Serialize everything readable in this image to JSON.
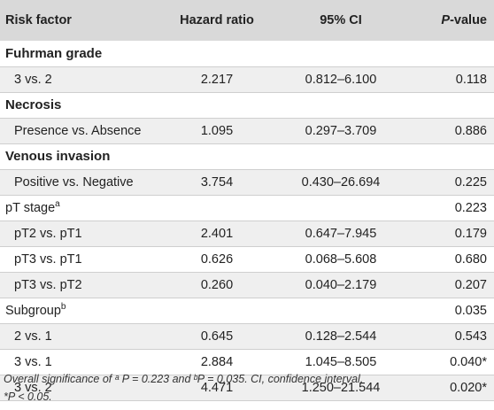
{
  "header": {
    "risk_factor": "Risk factor",
    "hazard_ratio": "Hazard ratio",
    "ci": "95% CI",
    "pvalue_p": "P",
    "pvalue_rest": "-value"
  },
  "rows": [
    {
      "label": "Fuhrman grade",
      "type": "bold",
      "sup": "",
      "hr": "",
      "ci": "",
      "p": ""
    },
    {
      "label": "3 vs. 2",
      "type": "sub",
      "sup": "",
      "hr": "2.217",
      "ci": "0.812–6.100",
      "p": "0.118"
    },
    {
      "label": "Necrosis",
      "type": "bold",
      "sup": "",
      "hr": "",
      "ci": "",
      "p": ""
    },
    {
      "label": "Presence vs. Absence",
      "type": "sub",
      "sup": "",
      "hr": "1.095",
      "ci": "0.297–3.709",
      "p": "0.886"
    },
    {
      "label": "Venous invasion",
      "type": "bold",
      "sup": "",
      "hr": "",
      "ci": "",
      "p": ""
    },
    {
      "label": "Positive vs. Negative",
      "type": "sub",
      "sup": "",
      "hr": "3.754",
      "ci": "0.430–26.694",
      "p": "0.225"
    },
    {
      "label": "pT stage",
      "type": "plain",
      "sup": "a",
      "hr": "",
      "ci": "",
      "p": "0.223"
    },
    {
      "label": "pT2 vs. pT1",
      "type": "sub",
      "sup": "",
      "hr": "2.401",
      "ci": "0.647–7.945",
      "p": "0.179"
    },
    {
      "label": "pT3 vs. pT1",
      "type": "sub",
      "sup": "",
      "hr": "0.626",
      "ci": "0.068–5.608",
      "p": "0.680"
    },
    {
      "label": "pT3 vs. pT2",
      "type": "sub",
      "sup": "",
      "hr": "0.260",
      "ci": "0.040–2.179",
      "p": "0.207"
    },
    {
      "label": "Subgroup",
      "type": "plain",
      "sup": "b",
      "hr": "",
      "ci": "",
      "p": "0.035"
    },
    {
      "label": "2 vs. 1",
      "type": "sub",
      "sup": "",
      "hr": "0.645",
      "ci": "0.128–2.544",
      "p": "0.543"
    },
    {
      "label": "3 vs. 1",
      "type": "sub",
      "sup": "",
      "hr": "2.884",
      "ci": "1.045–8.505",
      "p": "0.040*"
    },
    {
      "label": "3 vs. 2",
      "type": "sub",
      "sup": "",
      "hr": "4.471",
      "ci": "1.250–21.544",
      "p": "0.020*"
    }
  ],
  "footnote": {
    "line1": "Overall significance of ᵃ P = 0.223 and ᵇP = 0.035. CI, confidence interval.",
    "line2": "*P < 0.05."
  }
}
